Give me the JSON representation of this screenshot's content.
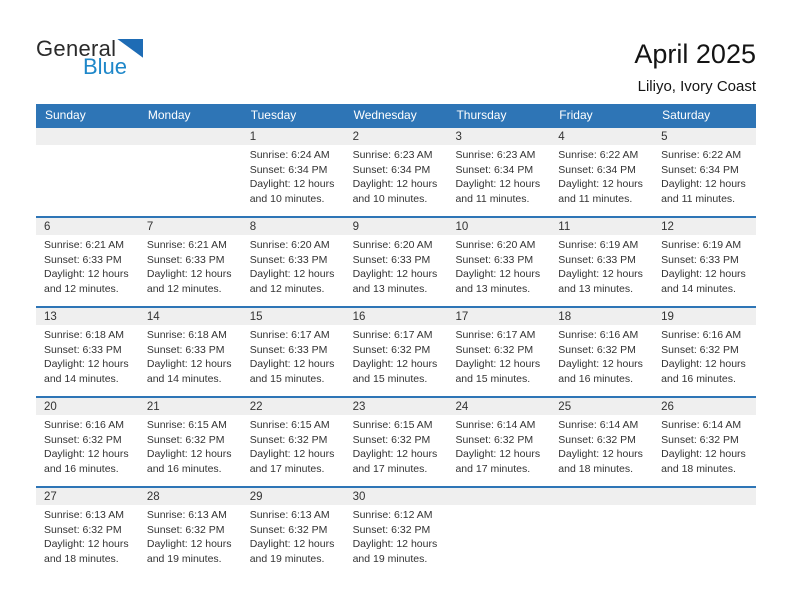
{
  "logo": {
    "line1": "General",
    "line2": "Blue"
  },
  "title": "April 2025",
  "location": "Liliyo, Ivory Coast",
  "weekday_headers": [
    "Sunday",
    "Monday",
    "Tuesday",
    "Wednesday",
    "Thursday",
    "Friday",
    "Saturday"
  ],
  "colors": {
    "header_blue": "#2E75B6",
    "band_gray": "#EFEFEF",
    "logo_blue": "#1E87C9",
    "triangle_blue": "#1E6CB5",
    "text": "#333333"
  },
  "weeks": [
    {
      "cells": [
        null,
        null,
        {
          "day": "1",
          "lines": [
            "Sunrise: 6:24 AM",
            "Sunset: 6:34 PM",
            "Daylight: 12 hours",
            "and 10 minutes."
          ]
        },
        {
          "day": "2",
          "lines": [
            "Sunrise: 6:23 AM",
            "Sunset: 6:34 PM",
            "Daylight: 12 hours",
            "and 10 minutes."
          ]
        },
        {
          "day": "3",
          "lines": [
            "Sunrise: 6:23 AM",
            "Sunset: 6:34 PM",
            "Daylight: 12 hours",
            "and 11 minutes."
          ]
        },
        {
          "day": "4",
          "lines": [
            "Sunrise: 6:22 AM",
            "Sunset: 6:34 PM",
            "Daylight: 12 hours",
            "and 11 minutes."
          ]
        },
        {
          "day": "5",
          "lines": [
            "Sunrise: 6:22 AM",
            "Sunset: 6:34 PM",
            "Daylight: 12 hours",
            "and 11 minutes."
          ]
        }
      ]
    },
    {
      "cells": [
        {
          "day": "6",
          "lines": [
            "Sunrise: 6:21 AM",
            "Sunset: 6:33 PM",
            "Daylight: 12 hours",
            "and 12 minutes."
          ]
        },
        {
          "day": "7",
          "lines": [
            "Sunrise: 6:21 AM",
            "Sunset: 6:33 PM",
            "Daylight: 12 hours",
            "and 12 minutes."
          ]
        },
        {
          "day": "8",
          "lines": [
            "Sunrise: 6:20 AM",
            "Sunset: 6:33 PM",
            "Daylight: 12 hours",
            "and 12 minutes."
          ]
        },
        {
          "day": "9",
          "lines": [
            "Sunrise: 6:20 AM",
            "Sunset: 6:33 PM",
            "Daylight: 12 hours",
            "and 13 minutes."
          ]
        },
        {
          "day": "10",
          "lines": [
            "Sunrise: 6:20 AM",
            "Sunset: 6:33 PM",
            "Daylight: 12 hours",
            "and 13 minutes."
          ]
        },
        {
          "day": "11",
          "lines": [
            "Sunrise: 6:19 AM",
            "Sunset: 6:33 PM",
            "Daylight: 12 hours",
            "and 13 minutes."
          ]
        },
        {
          "day": "12",
          "lines": [
            "Sunrise: 6:19 AM",
            "Sunset: 6:33 PM",
            "Daylight: 12 hours",
            "and 14 minutes."
          ]
        }
      ]
    },
    {
      "cells": [
        {
          "day": "13",
          "lines": [
            "Sunrise: 6:18 AM",
            "Sunset: 6:33 PM",
            "Daylight: 12 hours",
            "and 14 minutes."
          ]
        },
        {
          "day": "14",
          "lines": [
            "Sunrise: 6:18 AM",
            "Sunset: 6:33 PM",
            "Daylight: 12 hours",
            "and 14 minutes."
          ]
        },
        {
          "day": "15",
          "lines": [
            "Sunrise: 6:17 AM",
            "Sunset: 6:33 PM",
            "Daylight: 12 hours",
            "and 15 minutes."
          ]
        },
        {
          "day": "16",
          "lines": [
            "Sunrise: 6:17 AM",
            "Sunset: 6:32 PM",
            "Daylight: 12 hours",
            "and 15 minutes."
          ]
        },
        {
          "day": "17",
          "lines": [
            "Sunrise: 6:17 AM",
            "Sunset: 6:32 PM",
            "Daylight: 12 hours",
            "and 15 minutes."
          ]
        },
        {
          "day": "18",
          "lines": [
            "Sunrise: 6:16 AM",
            "Sunset: 6:32 PM",
            "Daylight: 12 hours",
            "and 16 minutes."
          ]
        },
        {
          "day": "19",
          "lines": [
            "Sunrise: 6:16 AM",
            "Sunset: 6:32 PM",
            "Daylight: 12 hours",
            "and 16 minutes."
          ]
        }
      ]
    },
    {
      "cells": [
        {
          "day": "20",
          "lines": [
            "Sunrise: 6:16 AM",
            "Sunset: 6:32 PM",
            "Daylight: 12 hours",
            "and 16 minutes."
          ]
        },
        {
          "day": "21",
          "lines": [
            "Sunrise: 6:15 AM",
            "Sunset: 6:32 PM",
            "Daylight: 12 hours",
            "and 16 minutes."
          ]
        },
        {
          "day": "22",
          "lines": [
            "Sunrise: 6:15 AM",
            "Sunset: 6:32 PM",
            "Daylight: 12 hours",
            "and 17 minutes."
          ]
        },
        {
          "day": "23",
          "lines": [
            "Sunrise: 6:15 AM",
            "Sunset: 6:32 PM",
            "Daylight: 12 hours",
            "and 17 minutes."
          ]
        },
        {
          "day": "24",
          "lines": [
            "Sunrise: 6:14 AM",
            "Sunset: 6:32 PM",
            "Daylight: 12 hours",
            "and 17 minutes."
          ]
        },
        {
          "day": "25",
          "lines": [
            "Sunrise: 6:14 AM",
            "Sunset: 6:32 PM",
            "Daylight: 12 hours",
            "and 18 minutes."
          ]
        },
        {
          "day": "26",
          "lines": [
            "Sunrise: 6:14 AM",
            "Sunset: 6:32 PM",
            "Daylight: 12 hours",
            "and 18 minutes."
          ]
        }
      ]
    },
    {
      "cells": [
        {
          "day": "27",
          "lines": [
            "Sunrise: 6:13 AM",
            "Sunset: 6:32 PM",
            "Daylight: 12 hours",
            "and 18 minutes."
          ]
        },
        {
          "day": "28",
          "lines": [
            "Sunrise: 6:13 AM",
            "Sunset: 6:32 PM",
            "Daylight: 12 hours",
            "and 19 minutes."
          ]
        },
        {
          "day": "29",
          "lines": [
            "Sunrise: 6:13 AM",
            "Sunset: 6:32 PM",
            "Daylight: 12 hours",
            "and 19 minutes."
          ]
        },
        {
          "day": "30",
          "lines": [
            "Sunrise: 6:12 AM",
            "Sunset: 6:32 PM",
            "Daylight: 12 hours",
            "and 19 minutes."
          ]
        },
        null,
        null,
        null
      ]
    }
  ]
}
